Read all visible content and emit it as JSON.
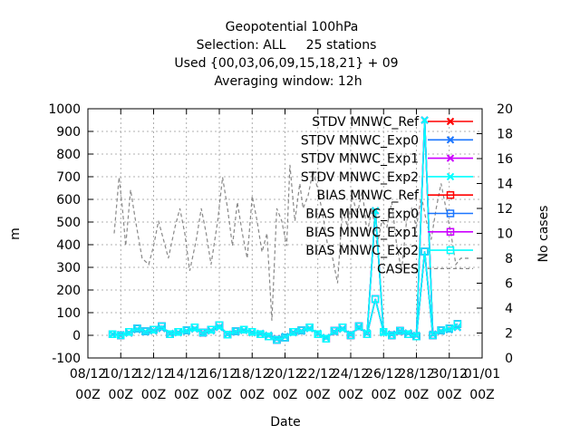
{
  "chart_data": {
    "type": "line",
    "title_lines": [
      "Geopotential 100hPa",
      "Selection: ALL     25 stations",
      "Used {00,03,06,09,15,18,21} + 09",
      "Averaging window: 12h"
    ],
    "xlabel": "Date",
    "ylabel": "m",
    "y2label": "No cases",
    "ylim": [
      -100,
      1000
    ],
    "y2lim": [
      0,
      20
    ],
    "xlim": [
      0,
      24
    ],
    "yticks": [
      -100,
      0,
      100,
      200,
      300,
      400,
      500,
      600,
      700,
      800,
      900,
      1000
    ],
    "y2ticks": [
      0,
      2,
      4,
      6,
      8,
      10,
      12,
      14,
      16,
      18,
      20
    ],
    "xticks": [
      {
        "pos": 0,
        "top": "08/12",
        "bottom": "00Z"
      },
      {
        "pos": 2,
        "top": "10/12",
        "bottom": "00Z"
      },
      {
        "pos": 4,
        "top": "12/12",
        "bottom": "00Z"
      },
      {
        "pos": 6,
        "top": "14/12",
        "bottom": "00Z"
      },
      {
        "pos": 8,
        "top": "16/12",
        "bottom": "00Z"
      },
      {
        "pos": 10,
        "top": "18/12",
        "bottom": "00Z"
      },
      {
        "pos": 12,
        "top": "20/12",
        "bottom": "00Z"
      },
      {
        "pos": 14,
        "top": "22/12",
        "bottom": "00Z"
      },
      {
        "pos": 16,
        "top": "24/12",
        "bottom": "00Z"
      },
      {
        "pos": 18,
        "top": "26/12",
        "bottom": "00Z"
      },
      {
        "pos": 20,
        "top": "28/12",
        "bottom": "00Z"
      },
      {
        "pos": 22,
        "top": "30/12",
        "bottom": "00Z"
      },
      {
        "pos": 24,
        "top": "01/01",
        "bottom": "00Z"
      }
    ],
    "x": [
      1.5,
      2,
      2.5,
      3,
      3.5,
      4,
      4.5,
      5,
      5.5,
      6,
      6.5,
      7,
      7.5,
      8,
      8.5,
      9,
      9.5,
      10,
      10.5,
      11,
      11.5,
      12,
      12.5,
      13,
      13.5,
      14,
      14.5,
      15,
      15.5,
      16,
      16.5,
      17,
      17.5,
      18,
      18.5,
      19,
      19.5,
      20,
      20.5,
      21,
      21.5,
      22,
      22.5
    ],
    "cases_x": [
      1.6,
      1.9,
      2.1,
      2.3,
      2.6,
      2.9,
      3.3,
      3.7,
      4,
      4.3,
      4.6,
      4.9,
      5.3,
      5.6,
      5.9,
      6.2,
      6.6,
      6.9,
      7.2,
      7.5,
      7.9,
      8.2,
      8.5,
      8.8,
      9.1,
      9.4,
      9.7,
      10,
      10.3,
      10.6,
      10.9,
      11.2,
      11.5,
      11.8,
      12.1,
      12.3,
      12.6,
      12.9,
      13.1,
      13.4,
      13.7,
      14,
      14.3,
      14.6,
      14.9,
      15.2,
      15.5,
      15.8,
      16.1,
      16.4,
      16.7,
      17,
      17.3,
      17.6,
      17.9,
      18.2,
      18.5,
      18.8,
      19.1,
      19.4,
      19.7,
      20,
      20.3,
      20.6,
      20.9,
      21.2,
      21.5,
      21.8,
      22.1,
      22.4,
      22.7,
      23,
      23.3
    ],
    "cases_values": [
      10,
      14.5,
      12,
      9,
      13.5,
      11,
      8,
      7.5,
      9,
      11,
      9.5,
      8,
      10.5,
      12,
      10,
      7,
      9.5,
      12,
      10,
      7.5,
      11,
      14.5,
      12,
      9,
      12.5,
      10,
      8,
      13,
      11,
      8.5,
      10,
      3,
      12,
      11,
      9,
      15.5,
      11,
      14,
      12,
      13,
      15,
      13.5,
      11.5,
      9,
      8,
      6,
      12,
      10.5,
      13,
      11.5,
      13.5,
      10,
      12,
      9,
      11,
      10.5,
      12.5,
      9,
      7,
      11,
      12,
      10.5,
      13,
      11,
      9.5,
      12,
      14,
      12,
      10,
      7.5,
      8,
      8,
      8
    ],
    "series": [
      {
        "name": "STDV MNWC_Ref",
        "color": "#ff0000",
        "marker": "x",
        "values": [
          5,
          2,
          10,
          25,
          15,
          20,
          30,
          8,
          12,
          18,
          28,
          10,
          20,
          35,
          5,
          15,
          22,
          12,
          8,
          0,
          -15,
          -5,
          12,
          18,
          30,
          8,
          -10,
          15,
          28,
          5,
          35,
          10,
          550,
          12,
          5,
          18,
          10,
          0,
          950,
          5,
          18,
          25,
          35
        ]
      },
      {
        "name": "STDV MNWC_Exp0",
        "color": "#1a75ff",
        "marker": "x",
        "values": [
          5,
          2,
          10,
          25,
          15,
          20,
          30,
          8,
          12,
          18,
          28,
          10,
          20,
          35,
          5,
          15,
          22,
          12,
          8,
          0,
          -15,
          -5,
          12,
          18,
          30,
          8,
          -10,
          15,
          28,
          5,
          35,
          10,
          550,
          12,
          5,
          18,
          10,
          0,
          950,
          5,
          18,
          25,
          35
        ]
      },
      {
        "name": "STDV MNWC_Exp1",
        "color": "#cc00ff",
        "marker": "x",
        "values": [
          5,
          2,
          10,
          25,
          15,
          20,
          30,
          8,
          12,
          18,
          28,
          10,
          20,
          35,
          5,
          15,
          22,
          12,
          8,
          0,
          -15,
          -5,
          12,
          18,
          30,
          8,
          -10,
          15,
          28,
          5,
          35,
          10,
          550,
          12,
          5,
          18,
          10,
          0,
          950,
          5,
          18,
          25,
          35
        ]
      },
      {
        "name": "STDV MNWC_Exp2",
        "color": "#00ffff",
        "marker": "x",
        "values": [
          5,
          2,
          10,
          25,
          15,
          20,
          30,
          8,
          12,
          18,
          28,
          10,
          20,
          35,
          5,
          15,
          22,
          12,
          8,
          0,
          -15,
          -5,
          12,
          18,
          30,
          8,
          -10,
          15,
          28,
          5,
          35,
          10,
          550,
          12,
          5,
          18,
          10,
          0,
          950,
          5,
          18,
          25,
          35
        ]
      },
      {
        "name": "BIAS MNWC_Ref",
        "color": "#ff0000",
        "marker": "square",
        "values": [
          5,
          0,
          15,
          30,
          18,
          25,
          40,
          5,
          15,
          22,
          35,
          12,
          25,
          45,
          3,
          18,
          25,
          15,
          5,
          -5,
          -20,
          -10,
          15,
          22,
          35,
          5,
          -15,
          20,
          35,
          0,
          40,
          5,
          160,
          15,
          0,
          20,
          5,
          -5,
          370,
          0,
          22,
          30,
          50
        ]
      },
      {
        "name": "BIAS MNWC_Exp0",
        "color": "#1a75ff",
        "marker": "square",
        "values": [
          5,
          0,
          15,
          30,
          18,
          25,
          40,
          5,
          15,
          22,
          35,
          12,
          25,
          45,
          3,
          18,
          25,
          15,
          5,
          -5,
          -20,
          -10,
          15,
          22,
          35,
          5,
          -15,
          20,
          35,
          0,
          40,
          5,
          160,
          15,
          0,
          20,
          5,
          -5,
          370,
          0,
          22,
          30,
          50
        ]
      },
      {
        "name": "BIAS MNWC_Exp1",
        "color": "#cc00ff",
        "marker": "square",
        "values": [
          5,
          0,
          15,
          30,
          18,
          25,
          40,
          5,
          15,
          22,
          35,
          12,
          25,
          45,
          3,
          18,
          25,
          15,
          5,
          -5,
          -20,
          -10,
          15,
          22,
          35,
          5,
          -15,
          20,
          35,
          0,
          40,
          5,
          160,
          15,
          0,
          20,
          5,
          -5,
          370,
          0,
          22,
          30,
          50
        ]
      },
      {
        "name": "BIAS MNWC_Exp2",
        "color": "#00ffff",
        "marker": "square",
        "values": [
          5,
          0,
          15,
          30,
          18,
          25,
          40,
          5,
          15,
          22,
          35,
          12,
          25,
          45,
          3,
          18,
          25,
          15,
          5,
          -5,
          -20,
          -10,
          15,
          22,
          35,
          5,
          -15,
          20,
          35,
          0,
          40,
          5,
          160,
          15,
          0,
          20,
          5,
          -5,
          370,
          0,
          22,
          30,
          50
        ]
      },
      {
        "name": "CASES",
        "color": "#888888",
        "marker": "none",
        "dashed": true,
        "axis": "y2"
      }
    ],
    "grid": true,
    "legend_position": "top-right"
  }
}
